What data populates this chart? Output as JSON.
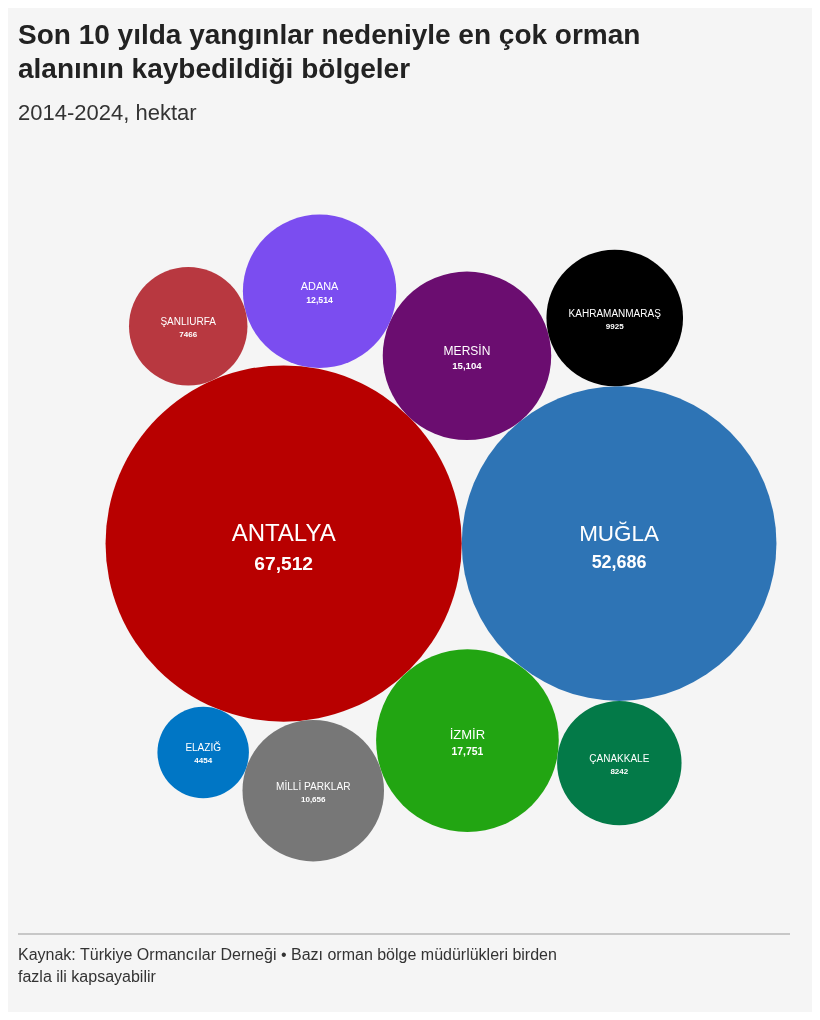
{
  "chart_data": {
    "type": "other",
    "title": "Son 10 yılda yangınlar nedeniyle en çok orman alanının kaybedildiği bölgeler",
    "subtitle": "2014-2024, hektar",
    "categories": [
      "ANTALYA",
      "MUĞLA",
      "İZMİR",
      "MERSİN",
      "ADANA",
      "MİLLİ PARKLAR",
      "KAHRAMANMARAŞ",
      "ÇANAKKALE",
      "ŞANLIURFA",
      "ELAZIĞ"
    ],
    "values": [
      67512,
      52686,
      17751,
      15104,
      12514,
      10656,
      9925,
      8242,
      7466,
      4454
    ],
    "value_labels": [
      "67,512",
      "52,686",
      "17,751",
      "15,104",
      "12,514",
      "10,656",
      "9925",
      "8242",
      "7466",
      "4454"
    ],
    "colors": [
      "#b80000",
      "#2e74b5",
      "#22a512",
      "#6b0d70",
      "#7b4df0",
      "#777777",
      "#000000",
      "#037a48",
      "#b83840",
      "#0076c5"
    ],
    "annotations": [
      "Kaynak: Türkiye Ormancılar Derneği • Bazı orman bölge müdürlükleri birden fazla ili kapsayabilir"
    ]
  }
}
